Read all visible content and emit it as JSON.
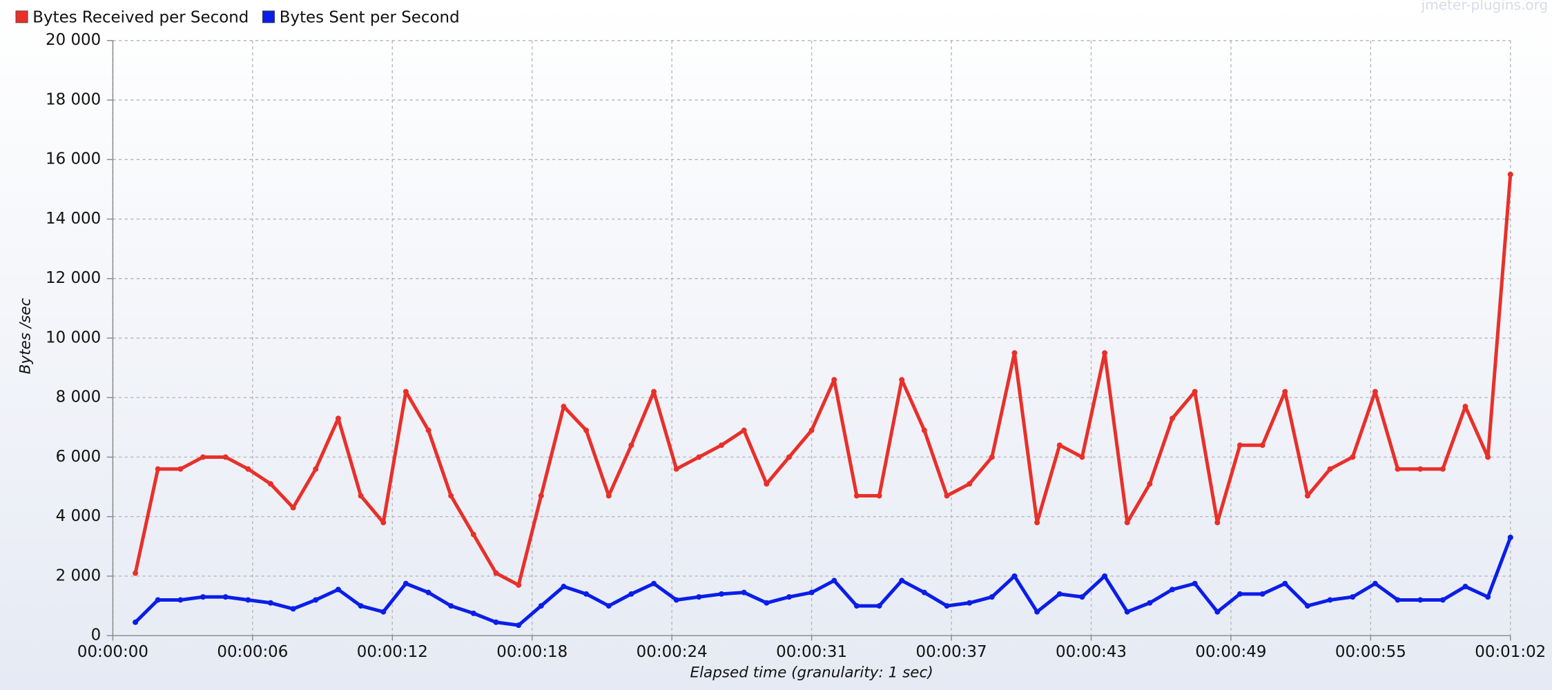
{
  "chart_data": {
    "type": "line",
    "watermark": "jmeter-plugins.org",
    "xlabel": "Elapsed time (granularity: 1 sec)",
    "ylabel": "Bytes /sec",
    "x": [
      1,
      2,
      3,
      4,
      5,
      6,
      7,
      8,
      9,
      10,
      11,
      12,
      13,
      14,
      15,
      16,
      17,
      18,
      19,
      20,
      21,
      22,
      23,
      24,
      25,
      26,
      27,
      28,
      29,
      30,
      31,
      32,
      33,
      34,
      35,
      36,
      37,
      38,
      39,
      40,
      41,
      42,
      43,
      44,
      45,
      46,
      47,
      48,
      49,
      50,
      51,
      52,
      53,
      54,
      55,
      56,
      57,
      58,
      59,
      60,
      61,
      62
    ],
    "series": [
      {
        "name": "Bytes Received per Second",
        "color": "#e8302a",
        "values": [
          2100,
          5600,
          5600,
          6000,
          6000,
          5600,
          5100,
          4300,
          5600,
          7300,
          4700,
          3800,
          8200,
          6900,
          4700,
          3400,
          2100,
          1700,
          4700,
          7700,
          6900,
          4700,
          6400,
          8200,
          5600,
          6000,
          6400,
          6900,
          5100,
          6000,
          6900,
          8600,
          4700,
          4700,
          8600,
          6900,
          4700,
          5100,
          6000,
          9500,
          3800,
          6400,
          6000,
          9500,
          3800,
          5100,
          7300,
          8200,
          3800,
          6400,
          6400,
          8200,
          4700,
          5600,
          6000,
          8200,
          5600,
          5600,
          5600,
          7700,
          6000,
          15500
        ]
      },
      {
        "name": "Bytes Sent per Second",
        "color": "#0a1ee8",
        "values": [
          450,
          1200,
          1200,
          1300,
          1300,
          1200,
          1100,
          900,
          1200,
          1550,
          1000,
          800,
          1750,
          1450,
          1000,
          750,
          450,
          350,
          1000,
          1650,
          1400,
          1000,
          1400,
          1750,
          1200,
          1300,
          1400,
          1450,
          1100,
          1300,
          1450,
          1850,
          1000,
          1000,
          1850,
          1450,
          1000,
          1100,
          1300,
          2000,
          800,
          1400,
          1300,
          2000,
          800,
          1100,
          1550,
          1750,
          800,
          1400,
          1400,
          1750,
          1000,
          1200,
          1300,
          1750,
          1200,
          1200,
          1200,
          1650,
          1300,
          3300
        ]
      }
    ],
    "xlim": [
      0,
      62
    ],
    "xticks": [
      {
        "value": 0,
        "label": "00:00:00"
      },
      {
        "value": 6.2,
        "label": "00:00:06"
      },
      {
        "value": 12.4,
        "label": "00:00:12"
      },
      {
        "value": 18.6,
        "label": "00:00:18"
      },
      {
        "value": 24.8,
        "label": "00:00:24"
      },
      {
        "value": 31,
        "label": "00:00:31"
      },
      {
        "value": 37.2,
        "label": "00:00:37"
      },
      {
        "value": 43.4,
        "label": "00:00:43"
      },
      {
        "value": 49.6,
        "label": "00:00:49"
      },
      {
        "value": 55.8,
        "label": "00:00:55"
      },
      {
        "value": 62,
        "label": "00:01:02"
      }
    ],
    "ylim": [
      0,
      20000
    ],
    "yticks": [
      0,
      {
        "value": 2000,
        "label": "2 000"
      },
      {
        "value": 4000,
        "label": "4 000"
      },
      {
        "value": 6000,
        "label": "6 000"
      },
      {
        "value": 8000,
        "label": "8 000"
      },
      {
        "value": 10000,
        "label": "10 000"
      },
      {
        "value": 12000,
        "label": "12 000"
      },
      {
        "value": 14000,
        "label": "14 000"
      },
      {
        "value": 16000,
        "label": "16 000"
      },
      {
        "value": 18000,
        "label": "18 000"
      },
      {
        "value": 20000,
        "label": "20 000"
      }
    ],
    "grid": true,
    "legend": "top-left"
  }
}
